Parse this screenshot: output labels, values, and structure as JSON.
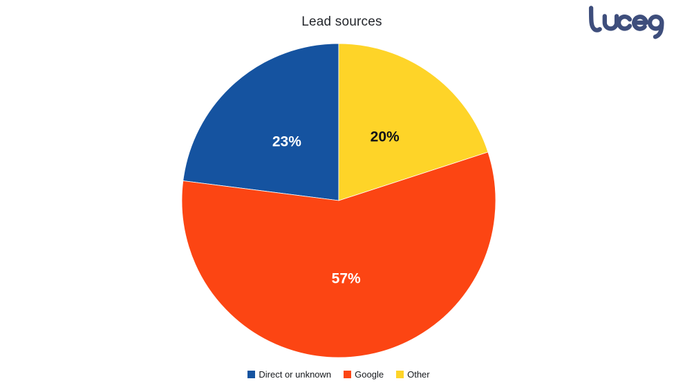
{
  "logo": {
    "brand": "Lucep",
    "color": "#3e4e7c"
  },
  "chart_data": {
    "type": "pie",
    "title": "Lead sources",
    "categories": [
      "Direct or unknown",
      "Google",
      "Other"
    ],
    "values": [
      23,
      57,
      20
    ],
    "value_labels": [
      "23%",
      "57%",
      "20%"
    ],
    "colors": [
      "#1553a0",
      "#fc4513",
      "#fed428"
    ],
    "value_label_colors": [
      "#ffffff",
      "#ffffff",
      "#101217"
    ],
    "start_angle": "12 o'clock",
    "winding": "counterclockwise",
    "legend_position": "bottom",
    "background": "#ffffff"
  }
}
